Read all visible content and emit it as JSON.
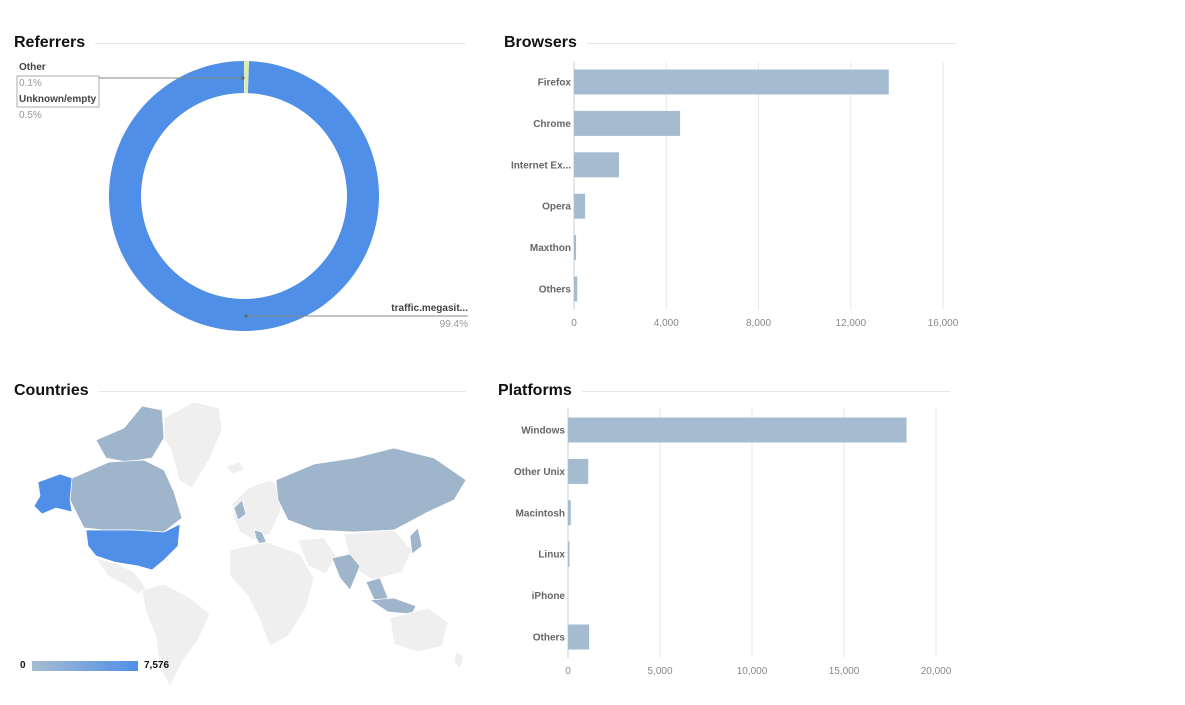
{
  "panels": {
    "referrers": {
      "title": "Referrers"
    },
    "browsers": {
      "title": "Browsers"
    },
    "countries": {
      "title": "Countries"
    },
    "platforms": {
      "title": "Platforms"
    }
  },
  "colors": {
    "bar": "#a5bcd0",
    "pie_main": "#4f8fe8",
    "pie_other": "#c5de5a",
    "pie_unknown": "#d6ecb0",
    "map_high": "#4f8fe8",
    "map_mid": "#9fb5cc",
    "map_none": "#efefef"
  },
  "chart_data": [
    {
      "id": "referrers",
      "type": "pie",
      "donut": true,
      "title": "Referrers",
      "slices": [
        {
          "label": "traffic.megasit...",
          "value_text": "99.4%",
          "value": 99.4
        },
        {
          "label": "Other",
          "value_text": "0.1%",
          "value": 0.1
        },
        {
          "label": "Unknown/empty",
          "value_text": "0.5%",
          "value": 0.5
        }
      ]
    },
    {
      "id": "browsers",
      "type": "bar",
      "orientation": "horizontal",
      "title": "Browsers",
      "categories": [
        "Firefox",
        "Chrome",
        "Internet Ex...",
        "Opera",
        "Maxthon",
        "Others"
      ],
      "values": [
        13650,
        4600,
        1950,
        480,
        90,
        140
      ],
      "xlim": [
        0,
        16000
      ],
      "ticks": [
        0,
        4000,
        8000,
        12000,
        16000
      ],
      "tick_labels": [
        "0",
        "4,000",
        "8,000",
        "12,000",
        "16,000"
      ]
    },
    {
      "id": "platforms",
      "type": "bar",
      "orientation": "horizontal",
      "title": "Platforms",
      "categories": [
        "Windows",
        "Other Unix",
        "Macintosh",
        "Linux",
        "iPhone",
        "Others"
      ],
      "values": [
        18400,
        1100,
        150,
        80,
        0,
        1150
      ],
      "xlim": [
        0,
        20000
      ],
      "ticks": [
        0,
        5000,
        10000,
        15000,
        20000
      ],
      "tick_labels": [
        "0",
        "5,000",
        "10,000",
        "15,000",
        "20,000"
      ]
    },
    {
      "id": "countries",
      "type": "heatmap",
      "title": "Countries",
      "scale_min_label": "0",
      "scale_max_label": "7,576"
    }
  ]
}
